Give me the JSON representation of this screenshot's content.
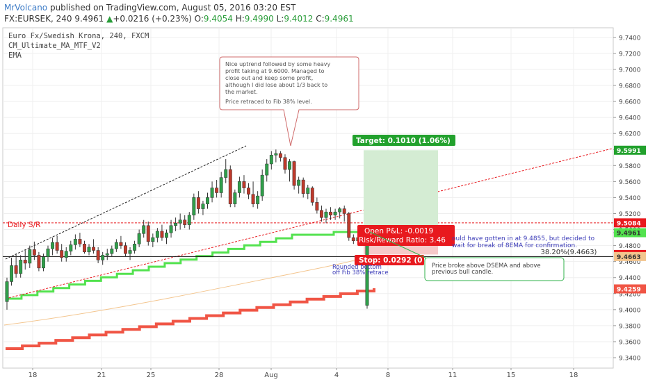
{
  "header": {
    "author": "MrVolcano",
    "published_text": " published on TradingView.com, August 05, 2016 03:20 EST",
    "symbol": "FX:EURSEK, 240",
    "last": "9.4961",
    "up_arrow": "▲",
    "change": "+0.0216 (+0.23%)",
    "open_label": "O:",
    "open": "9.4054",
    "high_label": "H:",
    "high": "9.4990",
    "low_label": "L:",
    "low": "9.4012",
    "close_label": "C:",
    "close": "9.4961"
  },
  "legend": [
    "Euro Fx/Swedish Krona, 240, FXCM",
    "CM_Ultimate_MA_MTF_V2",
    "EMA"
  ],
  "colors": {
    "up": "#2fa04a",
    "down": "#c0392b",
    "green_ma": "#53e24f",
    "red_ma": "#f05545",
    "orange_ma": "#f3c58e",
    "target": "#22a12d",
    "stop": "#e8191e",
    "callout_border": "#cf6b6b",
    "callout_green": "#2fb24a",
    "blue_text": "#3a3ab7"
  },
  "annotations": {
    "callout_top": [
      "Nice uptrend followed by some heavy",
      "profit taking at 9.6000.  Managed to",
      "close out and keep some profit,",
      "although I did lose about 1/3 back to",
      "the market.",
      "",
      "Price retraced to Fib 38% level."
    ],
    "daily_sr": "Daily S/R",
    "target": "Target: 0.1010 (1.06%)",
    "open_pnl": "Open P&L: -0.0019",
    "risk_reward": "Risk/Reward Ratio: 3.46",
    "stop": "Stop: 0.0292 (0",
    "fib": "38.20%(9.4663)",
    "blue_note_1": "ould have gotten in at 9.4855, but decided to",
    "blue_note_2": "wait for break of 8EMA for confirmation.",
    "rounded_1": "Rounded bottom",
    "rounded_2": "off Fib 38% retrace",
    "callout_green": [
      "Price broke above DSEMA and above",
      "previous bull candle."
    ]
  },
  "chart_data": {
    "type": "candlestick",
    "title": "Euro Fx/Swedish Krona, 240, FXCM",
    "ylim": [
      9.327,
      9.752
    ],
    "y_ticks": [
      "9.7400",
      "9.7200",
      "9.7000",
      "9.6800",
      "9.6600",
      "9.6400",
      "9.6200",
      "9.6000",
      "9.5800",
      "9.5600",
      "9.5400",
      "9.5200",
      "9.5000",
      "9.4961",
      "9.4800",
      "9.4600",
      "9.4400",
      "9.4200",
      "9.4000",
      "9.3800",
      "9.3600",
      "9.3400"
    ],
    "x_ticks": [
      "18",
      "21",
      "25",
      "28",
      "Aug",
      "4",
      "8",
      "11",
      "15",
      "18"
    ],
    "price_tags": [
      {
        "label": "9.5991",
        "value": 9.5991,
        "color": "#22a12d"
      },
      {
        "label": "9.5084",
        "value": 9.5084,
        "color": "#e8191e"
      },
      {
        "label": "9.4961",
        "value": 9.4961,
        "color": "#53e24f"
      },
      {
        "label": "9.4689",
        "value": 9.4689,
        "color": "#e8191e"
      },
      {
        "label": "9.4663",
        "value": 9.4663,
        "color": "#f3c58e"
      },
      {
        "label": "9.4259",
        "value": 9.4259,
        "color": "#f05545"
      }
    ],
    "levels": {
      "daily_sr": 9.5084,
      "fib_38": 9.4663,
      "target": 9.5991,
      "entry": 9.4961,
      "stop": 9.4689
    },
    "candles": [
      [
        9.41,
        9.44,
        9.4,
        9.435
      ],
      [
        9.435,
        9.465,
        9.43,
        9.455
      ],
      [
        9.455,
        9.47,
        9.44,
        9.445
      ],
      [
        9.445,
        9.468,
        9.44,
        9.462
      ],
      [
        9.462,
        9.475,
        9.45,
        9.458
      ],
      [
        9.458,
        9.48,
        9.452,
        9.475
      ],
      [
        9.475,
        9.485,
        9.462,
        9.468
      ],
      [
        9.468,
        9.472,
        9.448,
        9.452
      ],
      [
        9.452,
        9.47,
        9.448,
        9.466
      ],
      [
        9.466,
        9.48,
        9.46,
        9.476
      ],
      [
        9.476,
        9.49,
        9.468,
        9.484
      ],
      [
        9.484,
        9.492,
        9.47,
        9.474
      ],
      [
        9.474,
        9.482,
        9.46,
        9.465
      ],
      [
        9.465,
        9.478,
        9.46,
        9.473
      ],
      [
        9.473,
        9.486,
        9.468,
        9.481
      ],
      [
        9.481,
        9.494,
        9.475,
        9.488
      ],
      [
        9.488,
        9.496,
        9.478,
        9.482
      ],
      [
        9.482,
        9.486,
        9.47,
        9.472
      ],
      [
        9.472,
        9.482,
        9.468,
        9.478
      ],
      [
        9.478,
        9.488,
        9.47,
        9.474
      ],
      [
        9.474,
        9.478,
        9.458,
        9.462
      ],
      [
        9.462,
        9.472,
        9.456,
        9.468
      ],
      [
        9.468,
        9.476,
        9.462,
        9.47
      ],
      [
        9.47,
        9.48,
        9.466,
        9.476
      ],
      [
        9.476,
        9.488,
        9.472,
        9.484
      ],
      [
        9.484,
        9.492,
        9.476,
        9.48
      ],
      [
        9.48,
        9.484,
        9.466,
        9.47
      ],
      [
        9.47,
        9.478,
        9.462,
        9.474
      ],
      [
        9.474,
        9.486,
        9.47,
        9.482
      ],
      [
        9.482,
        9.5,
        9.478,
        9.495
      ],
      [
        9.495,
        9.512,
        9.49,
        9.505
      ],
      [
        9.505,
        9.51,
        9.48,
        9.485
      ],
      [
        9.485,
        9.495,
        9.478,
        9.49
      ],
      [
        9.49,
        9.502,
        9.484,
        9.498
      ],
      [
        9.498,
        9.506,
        9.486,
        9.49
      ],
      [
        9.49,
        9.5,
        9.482,
        9.496
      ],
      [
        9.496,
        9.512,
        9.49,
        9.505
      ],
      [
        9.505,
        9.515,
        9.498,
        9.508
      ],
      [
        9.508,
        9.52,
        9.5,
        9.512
      ],
      [
        9.512,
        9.518,
        9.502,
        9.506
      ],
      [
        9.506,
        9.522,
        9.5,
        9.518
      ],
      [
        9.518,
        9.545,
        9.512,
        9.54
      ],
      [
        9.54,
        9.548,
        9.52,
        9.526
      ],
      [
        9.526,
        9.536,
        9.518,
        9.532
      ],
      [
        9.532,
        9.546,
        9.526,
        9.54
      ],
      [
        9.54,
        9.56,
        9.534,
        9.552
      ],
      [
        9.552,
        9.562,
        9.54,
        9.546
      ],
      [
        9.546,
        9.572,
        9.54,
        9.565
      ],
      [
        9.565,
        9.588,
        9.558,
        9.575
      ],
      [
        9.575,
        9.58,
        9.528,
        9.532
      ],
      [
        9.532,
        9.55,
        9.528,
        9.546
      ],
      [
        9.546,
        9.566,
        9.54,
        9.56
      ],
      [
        9.56,
        9.568,
        9.545,
        9.552
      ],
      [
        9.552,
        9.558,
        9.538,
        9.544
      ],
      [
        9.544,
        9.56,
        9.528,
        9.532
      ],
      [
        9.532,
        9.548,
        9.526,
        9.542
      ],
      [
        9.542,
        9.575,
        9.536,
        9.568
      ],
      [
        9.568,
        9.588,
        9.56,
        9.582
      ],
      [
        9.582,
        9.598,
        9.575,
        9.593
      ],
      [
        9.593,
        9.6,
        9.584,
        9.595
      ],
      [
        9.595,
        9.598,
        9.585,
        9.59
      ],
      [
        9.59,
        9.594,
        9.57,
        9.575
      ],
      [
        9.575,
        9.588,
        9.56,
        9.585
      ],
      [
        9.585,
        9.586,
        9.55,
        9.555
      ],
      [
        9.555,
        9.566,
        9.545,
        9.562
      ],
      [
        9.562,
        9.565,
        9.54,
        9.545
      ],
      [
        9.545,
        9.556,
        9.538,
        9.552
      ],
      [
        9.552,
        9.554,
        9.53,
        9.534
      ],
      [
        9.534,
        9.54,
        9.52,
        9.524
      ],
      [
        9.524,
        9.53,
        9.51,
        9.515
      ],
      [
        9.515,
        9.526,
        9.508,
        9.522
      ],
      [
        9.522,
        9.528,
        9.512,
        9.518
      ],
      [
        9.518,
        9.526,
        9.512,
        9.522
      ],
      [
        9.522,
        9.528,
        9.514,
        9.526
      ],
      [
        9.526,
        9.53,
        9.51,
        9.52
      ],
      [
        9.52,
        9.522,
        9.486,
        9.49
      ],
      [
        9.49,
        9.494,
        9.482,
        9.486
      ],
      [
        9.486,
        9.493,
        9.48,
        9.49
      ],
      [
        9.49,
        9.493,
        9.482,
        9.484
      ],
      [
        9.4054,
        9.499,
        9.4012,
        9.4961
      ]
    ]
  }
}
